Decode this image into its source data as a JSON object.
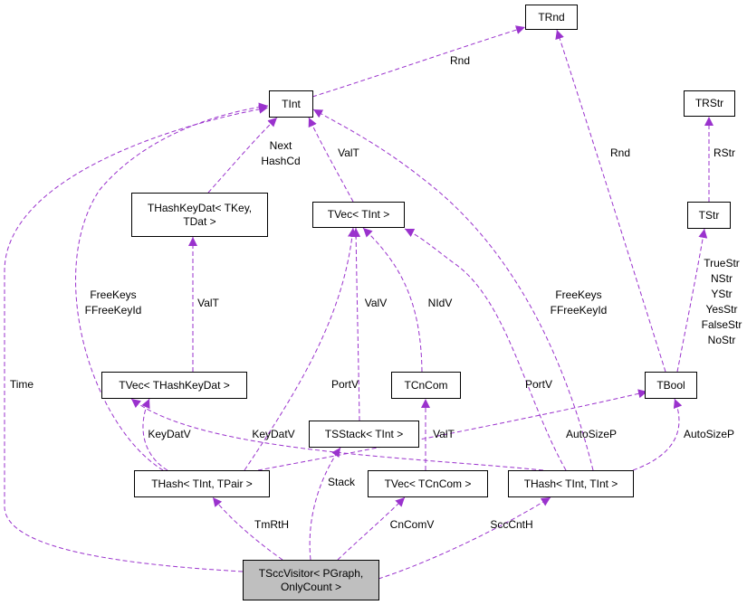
{
  "colors": {
    "edge": "#9a32cd",
    "main_fill": "#bfbfbf",
    "node_border": "#000000"
  },
  "nodes": {
    "trnd": "TRnd",
    "tint": "TInt",
    "trstr": "TRStr",
    "thashkeydat": "THashKeyDat< TKey,\nTDat >",
    "tvec_tint": "TVec< TInt >",
    "tstr": "TStr",
    "tvec_thashkeydat": "TVec< THashKeyDat >",
    "tcncom": "TCnCom",
    "tbool": "TBool",
    "tsstack": "TSStack< TInt >",
    "thash_tpair": "THash< TInt, TPair >",
    "tvec_tcncom": "TVec< TCnCom >",
    "thash_tint": "THash< TInt, TInt >",
    "tsccvisitor": "TSccVisitor< PGraph,\nOnlyCount >"
  },
  "edges": {
    "tint_trnd": "Rnd",
    "tbool_trnd": "Rnd",
    "tstr_trstr": "RStr",
    "tbool_tstr": "TrueStr\nNStr\nYStr\nYesStr\nFalseStr\nNoStr",
    "thashkeydat_tint": "Next\nHashCd",
    "tvec_tint_tint": "ValT",
    "tvec_thkd_thkd": "ValT",
    "tcncom_tvec": "NIdV",
    "tsstack_tvec": "ValV",
    "thp_tvec": "PortV",
    "thp_tint": "FreeKeys\nFFreeKeyId",
    "thp_tvhkd": "KeyDatV",
    "thp_tbool": "AutoSizeP",
    "thi_tvhkd": "KeyDatV",
    "thi_tint": "FreeKeys\nFFreeKeyId",
    "thi_tvec": "PortV",
    "thi_tbool": "AutoSizeP",
    "tvcc_tcncom": "ValT",
    "scc_thp": "TmRtH",
    "scc_stack": "Stack",
    "scc_tvcc": "CnComV",
    "scc_thi": "SccCntH",
    "scc_time": "Time"
  }
}
